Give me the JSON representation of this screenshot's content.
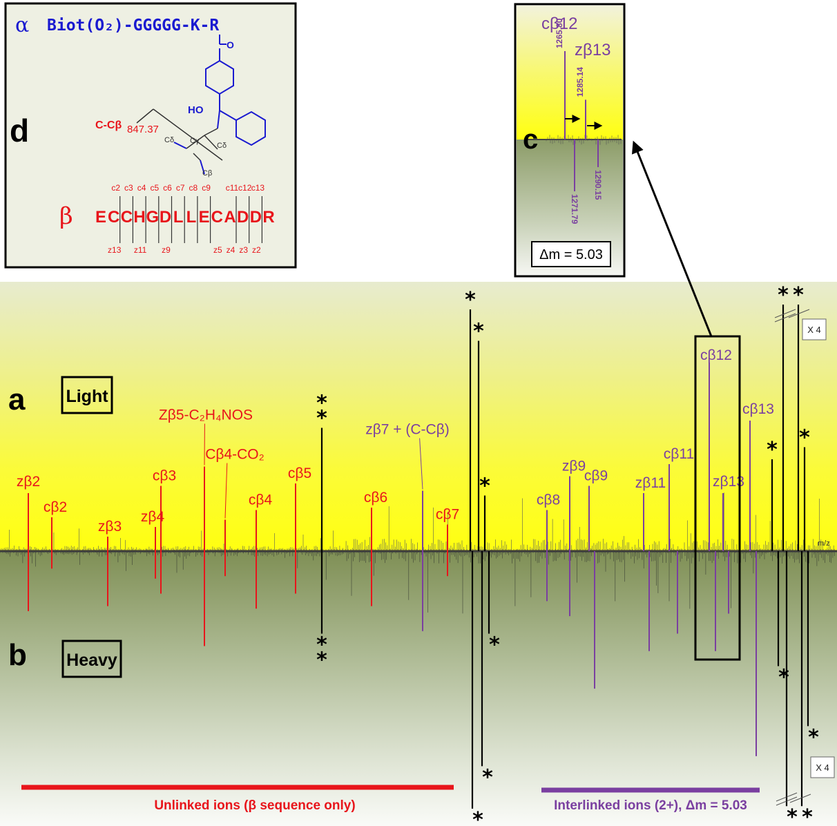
{
  "panel_letters": {
    "a": "a",
    "b": "b",
    "c": "c",
    "d": "d"
  },
  "panel_labels": {
    "light": "Light",
    "heavy": "Heavy"
  },
  "scale_badges": {
    "top": "X 4",
    "bottom": "X 4"
  },
  "axis": {
    "xlabel": "m/z"
  },
  "colors": {
    "unlinked": "#e8151b",
    "interlinked": "#7a3fa0",
    "crosslinker": "#1a1ad0",
    "marker": "#000000"
  },
  "bars": {
    "unlinked_label": "Unlinked ions (β sequence only)",
    "interlinked_label": "Interlinked ions (2+), Δm = 5.03"
  },
  "panel_d": {
    "alpha_symbol": "α",
    "alpha_peptide": "Biot(O₂)-GGGGG-K-R",
    "beta_symbol": "β",
    "beta_sequence": [
      "E",
      "C",
      "C",
      "H",
      "G",
      "D",
      "L",
      "L",
      "E",
      "C",
      "A",
      "D",
      "D",
      "R"
    ],
    "c_ions": [
      "c2",
      "c3",
      "c4",
      "c5",
      "c6",
      "c7",
      "c8",
      "c9",
      "c11",
      "c12",
      "c13"
    ],
    "z_ions": [
      "z13",
      "z11",
      "z9",
      "z5",
      "z4",
      "z3",
      "z2"
    ],
    "cleavage_label": "C-Cβ",
    "cleavage_mass": "847.37",
    "chem": {
      "oxygen": "O",
      "hydroxyl": "HO",
      "c_gamma": "Cγ",
      "c_delta": "Cδ",
      "c_beta": "Cβ"
    }
  },
  "panel_c": {
    "label_c12": "cβ12",
    "label_z13": "zβ13",
    "delta_m": "Δm = 5.03",
    "peaks_light": [
      {
        "mz": "1265.80",
        "rel": 1.0
      },
      {
        "mz": "1285.14",
        "rel": 0.45
      }
    ],
    "peaks_heavy": [
      {
        "mz": "1271.79",
        "rel": 0.75
      },
      {
        "mz": "1290.15",
        "rel": 0.4
      }
    ]
  },
  "chart_data": {
    "type": "mirror-spectrum",
    "xlabel": "m/z",
    "series": [
      {
        "name": "Light",
        "peaks": [
          {
            "label": "zβ2",
            "kind": "unlinked",
            "x": 41,
            "rel": 0.24
          },
          {
            "label": "cβ2",
            "kind": "unlinked",
            "x": 75,
            "rel": 0.14
          },
          {
            "label": "zβ3",
            "kind": "unlinked",
            "x": 156,
            "rel": 0.06
          },
          {
            "label": "zβ4",
            "kind": "unlinked",
            "x": 225,
            "rel": 0.1
          },
          {
            "label": "cβ3",
            "kind": "unlinked",
            "x": 233,
            "rel": 0.27
          },
          {
            "label": "Zβ5-C₂H₄NOS",
            "kind": "unlinked",
            "x": 296,
            "rel": 0.35
          },
          {
            "label": "Cβ4-CO₂",
            "kind": "unlinked",
            "x": 326,
            "rel": 0.13
          },
          {
            "label": "cβ4",
            "kind": "unlinked",
            "x": 371,
            "rel": 0.17
          },
          {
            "label": "cβ5",
            "kind": "unlinked",
            "x": 428,
            "rel": 0.28
          },
          {
            "label": "**",
            "kind": "marker",
            "x": 466,
            "rel": 0.51
          },
          {
            "label": "cβ6",
            "kind": "unlinked",
            "x": 538,
            "rel": 0.18
          },
          {
            "label": "zβ7 + (C-Cβ)",
            "kind": "interlinked",
            "x": 612,
            "rel": 0.25
          },
          {
            "label": "cβ7",
            "kind": "unlinked",
            "x": 648,
            "rel": 0.11
          },
          {
            "label": "*",
            "kind": "marker",
            "x": 681,
            "rel": 1.0
          },
          {
            "label": "*",
            "kind": "marker",
            "x": 693,
            "rel": 0.87
          },
          {
            "label": "*",
            "kind": "marker",
            "x": 702,
            "rel": 0.23
          },
          {
            "label": "cβ8",
            "kind": "interlinked",
            "x": 792,
            "rel": 0.17
          },
          {
            "label": "zβ9",
            "kind": "interlinked",
            "x": 825,
            "rel": 0.31
          },
          {
            "label": "cβ9",
            "kind": "interlinked",
            "x": 853,
            "rel": 0.27
          },
          {
            "label": "zβ11",
            "kind": "interlinked",
            "x": 932,
            "rel": 0.24
          },
          {
            "label": "cβ11",
            "kind": "interlinked",
            "x": 969,
            "rel": 0.36
          },
          {
            "label": "cβ12",
            "kind": "interlinked",
            "x": 1027,
            "rel": 0.78
          },
          {
            "label": "zβ13",
            "kind": "interlinked",
            "x": 1047,
            "rel": 0.24
          },
          {
            "label": "cβ13",
            "kind": "interlinked",
            "x": 1086,
            "rel": 0.54
          },
          {
            "label": "*",
            "kind": "marker",
            "x": 1118,
            "rel": 0.38
          },
          {
            "label": "*",
            "kind": "marker",
            "x": 1134,
            "rel": 1.02
          },
          {
            "label": "*",
            "kind": "marker",
            "x": 1156,
            "rel": 1.02
          },
          {
            "label": "*",
            "kind": "marker",
            "x": 1165,
            "rel": 0.43
          }
        ]
      },
      {
        "name": "Heavy",
        "peaks": [
          {
            "label": "zβ2",
            "kind": "unlinked",
            "x": 41,
            "rel": 0.24
          },
          {
            "label": "cβ2",
            "kind": "unlinked",
            "x": 75,
            "rel": 0.07
          },
          {
            "label": "zβ3",
            "kind": "unlinked",
            "x": 156,
            "rel": 0.22
          },
          {
            "label": "zβ4",
            "kind": "unlinked",
            "x": 225,
            "rel": 0.11
          },
          {
            "label": "cβ3",
            "kind": "unlinked",
            "x": 233,
            "rel": 0.17
          },
          {
            "label": "Zβ5-C₂H₄NOS",
            "kind": "unlinked",
            "x": 296,
            "rel": 0.38
          },
          {
            "label": "Cβ4-CO₂",
            "kind": "unlinked",
            "x": 326,
            "rel": 0.1
          },
          {
            "label": "cβ4",
            "kind": "unlinked",
            "x": 371,
            "rel": 0.23
          },
          {
            "label": "cβ5",
            "kind": "unlinked",
            "x": 428,
            "rel": 0.17
          },
          {
            "label": "**",
            "kind": "marker",
            "x": 466,
            "rel": 0.33
          },
          {
            "label": "cβ6",
            "kind": "unlinked",
            "x": 538,
            "rel": 0.22
          },
          {
            "label": "zβ7 + (C-Cβ)",
            "kind": "interlinked",
            "x": 612,
            "rel": 0.32
          },
          {
            "label": "cβ7",
            "kind": "unlinked",
            "x": 648,
            "rel": 0.1
          },
          {
            "label": "*",
            "kind": "marker",
            "x": 684,
            "rel": 1.03
          },
          {
            "label": "*",
            "kind": "marker",
            "x": 698,
            "rel": 0.86
          },
          {
            "label": "*",
            "kind": "marker",
            "x": 708,
            "rel": 0.33
          },
          {
            "label": "cβ8",
            "kind": "interlinked",
            "x": 792,
            "rel": 0.2
          },
          {
            "label": "zβ9",
            "kind": "interlinked",
            "x": 825,
            "rel": 0.26
          },
          {
            "label": "cβ9",
            "kind": "interlinked",
            "x": 861,
            "rel": 0.55
          },
          {
            "label": "zβ11",
            "kind": "interlinked",
            "x": 940,
            "rel": 0.4
          },
          {
            "label": "cβ11",
            "kind": "interlinked",
            "x": 981,
            "rel": 0.33
          },
          {
            "label": "cβ12",
            "kind": "interlinked",
            "x": 1036,
            "rel": 0.4
          },
          {
            "label": "zβ13",
            "kind": "interlinked",
            "x": 1055,
            "rel": 0.25
          },
          {
            "label": "cβ13",
            "kind": "interlinked",
            "x": 1095,
            "rel": 0.82
          },
          {
            "label": "*",
            "kind": "marker",
            "x": 1127,
            "rel": 0.46
          },
          {
            "label": "*",
            "kind": "marker",
            "x": 1139,
            "rel": 1.02
          },
          {
            "label": "*",
            "kind": "marker",
            "x": 1161,
            "rel": 1.02
          },
          {
            "label": "*",
            "kind": "marker",
            "x": 1170,
            "rel": 0.7
          }
        ]
      }
    ]
  }
}
